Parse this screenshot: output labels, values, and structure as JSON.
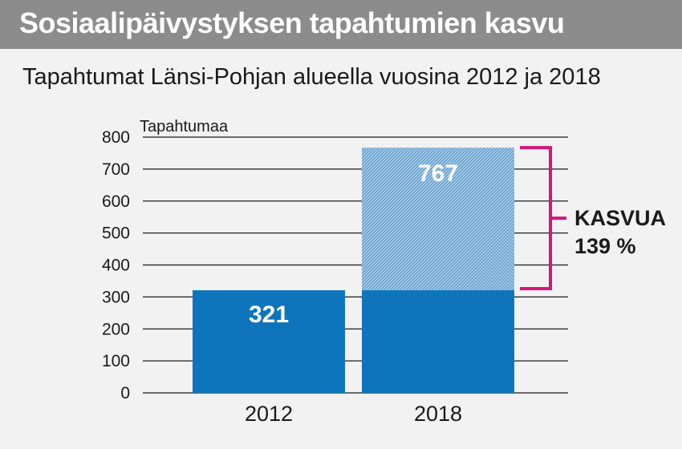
{
  "header": {
    "title": "Sosiaalipäivystyksen tapahtumien kasvu",
    "subtitle": "Tapahtumat Länsi-Pohjan alueella vuosina 2012 ja 2018"
  },
  "chart_data": {
    "type": "bar",
    "categories": [
      "2012",
      "2018"
    ],
    "values": [
      321,
      767
    ],
    "value_labels": [
      "321",
      "767"
    ],
    "baseline_value": 321,
    "ylabel": "Tapahtumaa",
    "ylim": [
      0,
      800
    ],
    "yticks": [
      0,
      100,
      200,
      300,
      400,
      500,
      600,
      700,
      800
    ],
    "grid": true,
    "annotation": {
      "line1": "KASVUA",
      "line2": "139 %"
    },
    "colors": {
      "bar": "#0e75bd",
      "increase_hatch_light": "#a9cbe6",
      "increase_hatch_dark": "#5c9bcc",
      "bracket": "#d6157c",
      "grid": "#1a1a1a",
      "title_bg": "#8c8c8c"
    }
  }
}
